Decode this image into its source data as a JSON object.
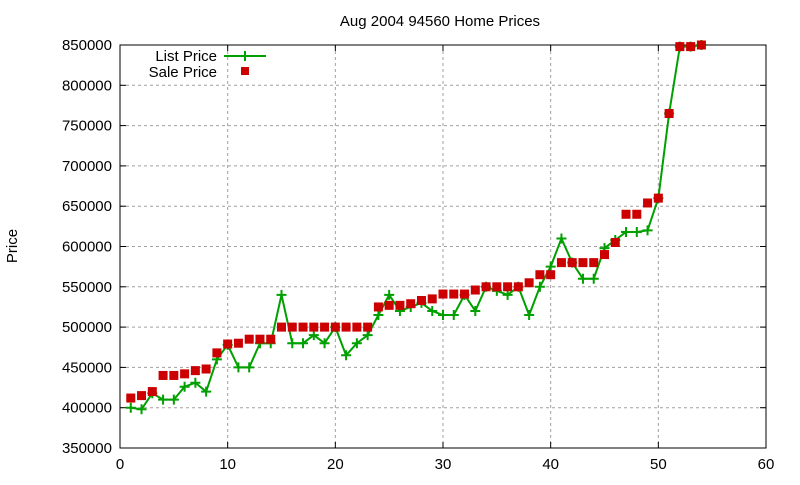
{
  "chart_data": {
    "type": "line",
    "title": "Aug 2004 94560 Home Prices",
    "xlabel": "",
    "ylabel": "Price",
    "xlim": [
      0,
      60
    ],
    "ylim": [
      350000,
      850000
    ],
    "xticks": [
      0,
      10,
      20,
      30,
      40,
      50,
      60
    ],
    "yticks": [
      350000,
      400000,
      450000,
      500000,
      550000,
      600000,
      650000,
      700000,
      750000,
      800000,
      850000
    ],
    "grid": true,
    "legend_position": "top-left",
    "x": [
      1,
      2,
      3,
      4,
      5,
      6,
      7,
      8,
      9,
      10,
      11,
      12,
      13,
      14,
      15,
      16,
      17,
      18,
      19,
      20,
      21,
      22,
      23,
      24,
      25,
      26,
      27,
      28,
      29,
      30,
      31,
      32,
      33,
      34,
      35,
      36,
      37,
      38,
      39,
      40,
      41,
      42,
      43,
      44,
      45,
      46,
      47,
      48,
      49,
      50,
      51,
      52,
      53,
      54
    ],
    "series": [
      {
        "name": "List Price",
        "style": "linespoints",
        "color": "#00a000",
        "values": [
          400000,
          398000,
          418000,
          410000,
          410000,
          426000,
          431000,
          420000,
          460000,
          478000,
          450000,
          450000,
          480000,
          480000,
          540000,
          480000,
          480000,
          490000,
          480000,
          500000,
          465000,
          480000,
          490000,
          515000,
          540000,
          520000,
          525000,
          530000,
          520000,
          515000,
          515000,
          540000,
          520000,
          550000,
          545000,
          540000,
          550000,
          515000,
          550000,
          575000,
          610000,
          580000,
          560000,
          560000,
          598000,
          608000,
          618000,
          618000,
          620000,
          660000,
          765000,
          848000,
          848000,
          850000
        ]
      },
      {
        "name": "Sale Price",
        "style": "points",
        "color": "#cc0000",
        "values": [
          412000,
          415000,
          420000,
          440000,
          440000,
          442000,
          446000,
          448000,
          468000,
          479000,
          480000,
          485000,
          485000,
          485000,
          500000,
          500000,
          500000,
          500000,
          500000,
          500000,
          500000,
          500000,
          500000,
          525000,
          527000,
          527000,
          529000,
          533000,
          535000,
          541000,
          541000,
          541000,
          546000,
          550000,
          550000,
          550000,
          550000,
          555000,
          565000,
          565000,
          580000,
          580000,
          580000,
          580000,
          590000,
          605000,
          640000,
          640000,
          654000,
          660000,
          765000,
          848000,
          848000,
          850000
        ]
      }
    ]
  }
}
